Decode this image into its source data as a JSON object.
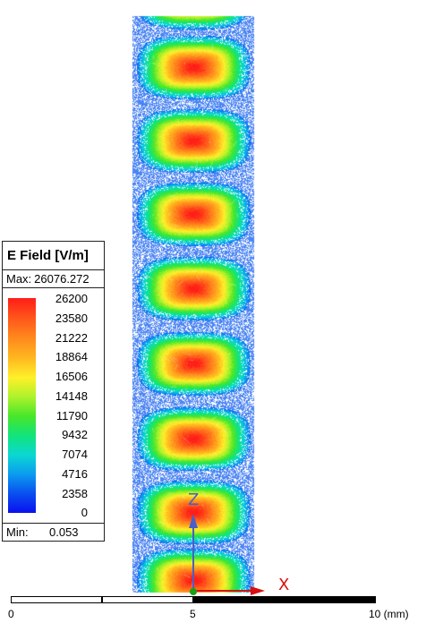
{
  "legend": {
    "title": "E Field [V/m]",
    "max_label": "Max:",
    "max_value": "26076.272",
    "min_label": "Min:",
    "min_value": "0.053",
    "ticks": [
      "26200",
      "23580",
      "21222",
      "18864",
      "16506",
      "14148",
      "11790",
      "9432",
      "7074",
      "4716",
      "2358",
      "0"
    ],
    "colors": [
      "#ff1d18",
      "#ff8b1d",
      "#fff02a",
      "#48e62a",
      "#0bd8d2",
      "#0a10ee"
    ]
  },
  "triad": {
    "x_label": "X",
    "z_label": "Z",
    "x_color": "#d81010",
    "z_color": "#4a5fc8",
    "origin_color": "#18a018"
  },
  "scale": {
    "labels": [
      "0",
      "5",
      "10 (mm)"
    ]
  },
  "field_plot": {
    "description_type": "electric-field-magnitude-contour",
    "visible_lobes": 9,
    "max_value": 26076.272,
    "min_value": 0.053
  }
}
